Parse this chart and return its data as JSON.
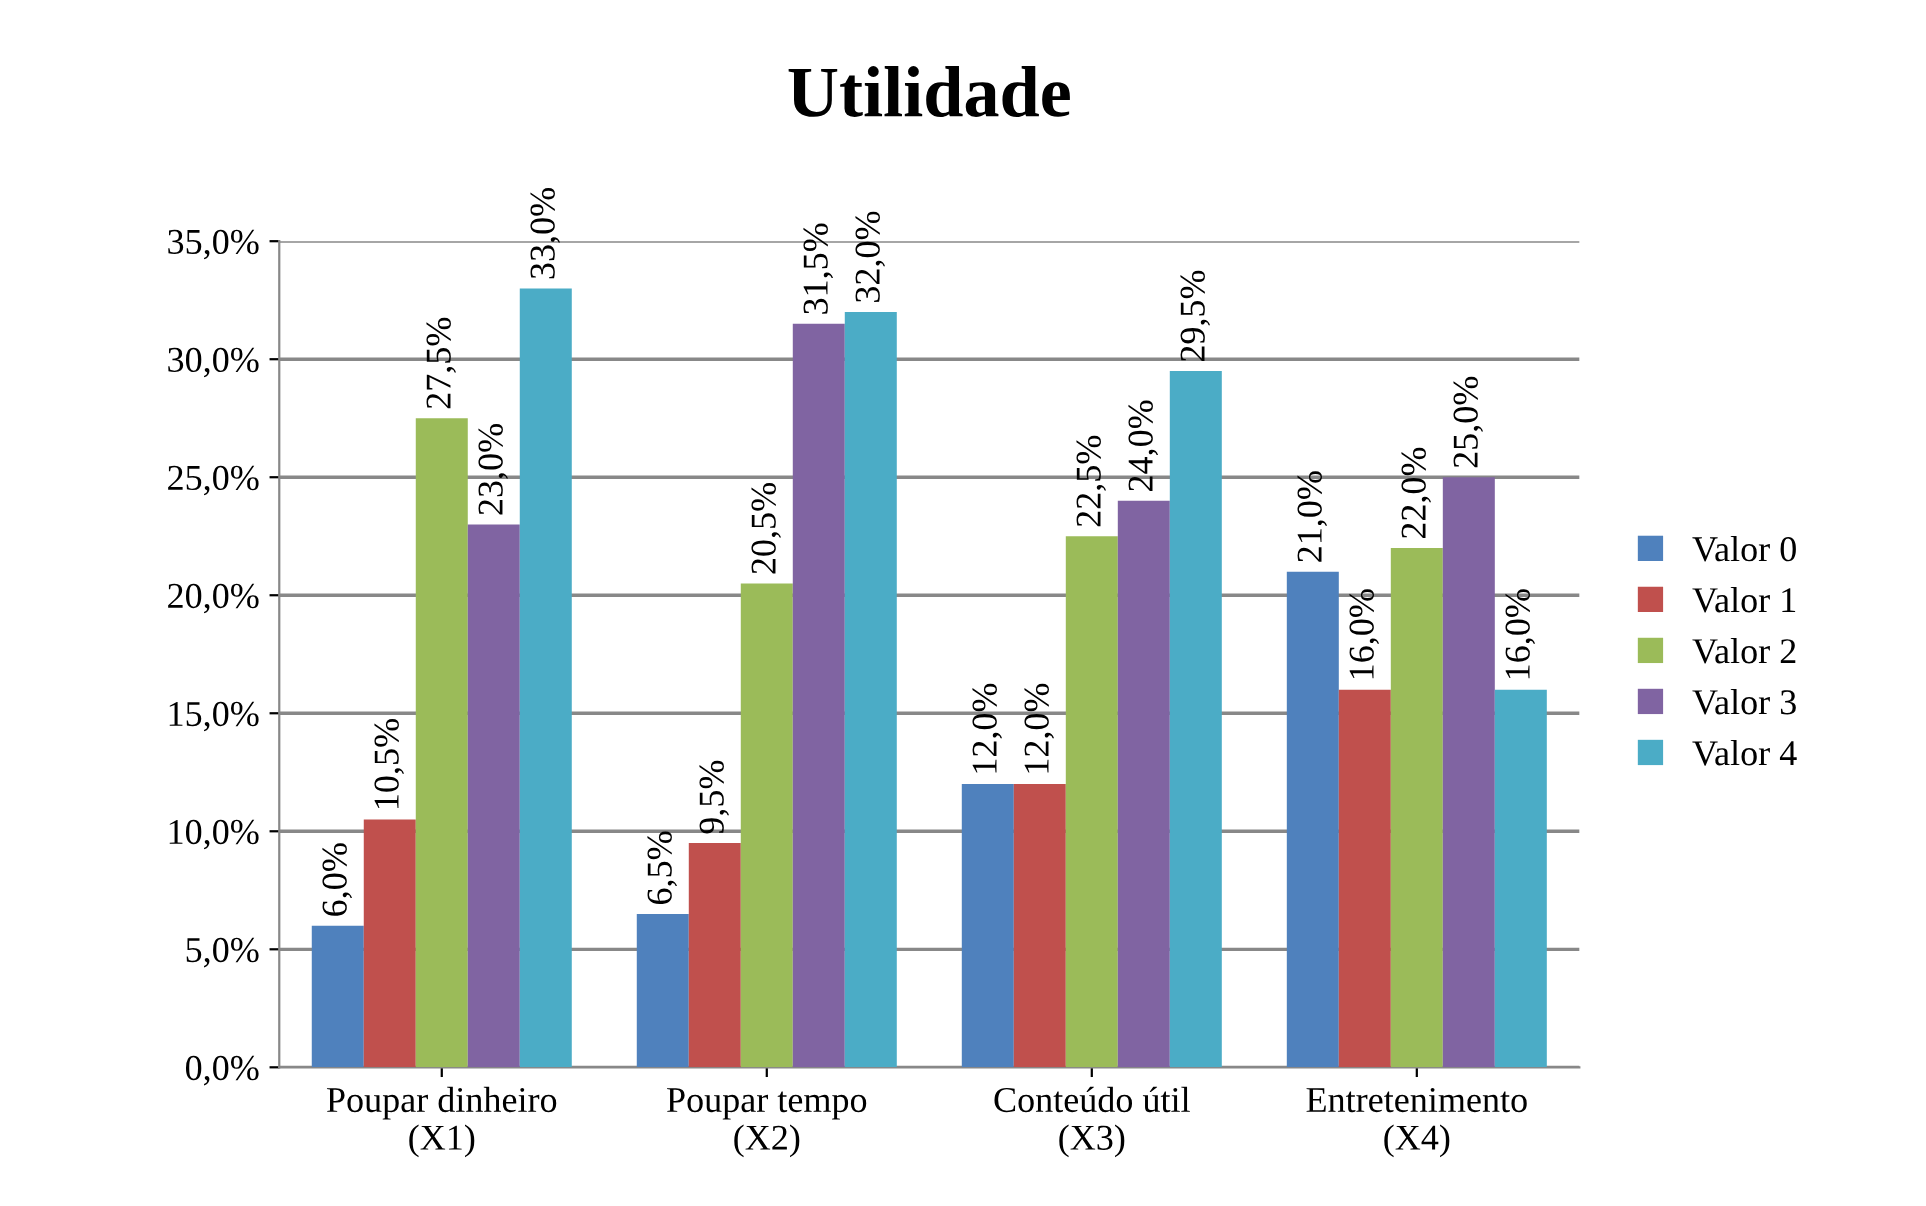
{
  "chart_data": {
    "type": "bar",
    "title": "Utilidade",
    "categories": [
      "Poupar dinheiro\n(X1)",
      "Poupar tempo\n(X2)",
      "Conteúdo útil\n(X3)",
      "Entretenimento\n(X4)"
    ],
    "series": [
      {
        "name": "Valor 0",
        "color": "#4f81bd",
        "values": [
          6.0,
          6.5,
          12.0,
          21.0
        ],
        "value_labels": [
          "6,0%",
          "6,5%",
          "12,0%",
          "21,0%"
        ]
      },
      {
        "name": "Valor 1",
        "color": "#c0504d",
        "values": [
          10.5,
          9.5,
          12.0,
          16.0
        ],
        "value_labels": [
          "10,5%",
          "9,5%",
          "12,0%",
          "16,0%"
        ]
      },
      {
        "name": "Valor 2",
        "color": "#9bbb59",
        "values": [
          27.5,
          20.5,
          22.5,
          22.0
        ],
        "value_labels": [
          "27,5%",
          "20,5%",
          "22,5%",
          "22,0%"
        ]
      },
      {
        "name": "Valor 3",
        "color": "#8064a2",
        "values": [
          23.0,
          31.5,
          24.0,
          25.0
        ],
        "value_labels": [
          "23,0%",
          "31,5%",
          "24,0%",
          "25,0%"
        ]
      },
      {
        "name": "Valor 4",
        "color": "#4bacc6",
        "values": [
          33.0,
          32.0,
          29.5,
          16.0
        ],
        "value_labels": [
          "33,0%",
          "32,0%",
          "29,5%",
          "16,0%"
        ]
      }
    ],
    "ylim": [
      0,
      35
    ],
    "yticks": [
      {
        "value": 0,
        "label": "0,0%"
      },
      {
        "value": 5,
        "label": "5,0%"
      },
      {
        "value": 10,
        "label": "10,0%"
      },
      {
        "value": 15,
        "label": "15,0%"
      },
      {
        "value": 20,
        "label": "20,0%"
      },
      {
        "value": 25,
        "label": "25,0%"
      },
      {
        "value": 30,
        "label": "30,0%"
      },
      {
        "value": 35,
        "label": "35,0%"
      }
    ],
    "grid": "y",
    "legend": "right"
  }
}
